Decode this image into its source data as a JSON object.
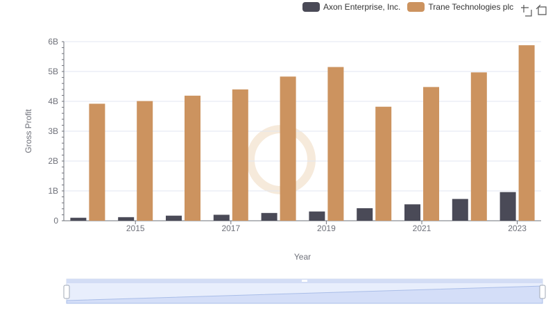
{
  "legend": {
    "series": [
      {
        "name": "Axon Enterprise, Inc.",
        "color": "#4a4a57"
      },
      {
        "name": "Trane Technologies plc",
        "color": "#cc935f"
      }
    ]
  },
  "toolbar": {
    "icons": [
      "zoom-icon",
      "restore-icon"
    ]
  },
  "chart_data": {
    "type": "bar",
    "x": [
      2014,
      2015,
      2016,
      2017,
      2018,
      2019,
      2020,
      2021,
      2022,
      2023
    ],
    "x_tick_labels": [
      "2015",
      "2017",
      "2019",
      "2021",
      "2023"
    ],
    "x_ticks": [
      2015,
      2017,
      2019,
      2021,
      2023
    ],
    "series": [
      {
        "name": "Axon Enterprise, Inc.",
        "color": "#4a4a57",
        "values": [
          0.1,
          0.12,
          0.17,
          0.2,
          0.26,
          0.31,
          0.42,
          0.55,
          0.73,
          0.96
        ]
      },
      {
        "name": "Trane Technologies plc",
        "color": "#cc935f",
        "values": [
          3.92,
          4.01,
          4.19,
          4.4,
          4.83,
          5.15,
          3.82,
          4.48,
          4.97,
          5.88
        ]
      }
    ],
    "y_ticks": [
      0,
      1,
      2,
      3,
      4,
      5,
      6
    ],
    "y_tick_labels": [
      "0",
      "1B",
      "2B",
      "3B",
      "4B",
      "5B",
      "6B"
    ],
    "ylim": [
      0,
      6
    ],
    "xlabel": "Year",
    "ylabel": "Gross Profit",
    "grid": true,
    "legend_position": "top-right"
  }
}
